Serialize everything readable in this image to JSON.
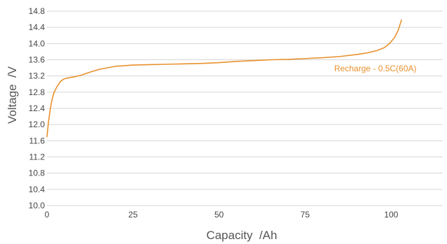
{
  "chart_data": {
    "type": "line",
    "title": "",
    "xlabel": "Capacity  /Ah",
    "ylabel": "Voltage  /V",
    "xlim": [
      0,
      115
    ],
    "ylim": [
      10.0,
      14.8
    ],
    "x_ticks": [
      0,
      25,
      50,
      75,
      100
    ],
    "x_tick_labels": [
      "0",
      "25",
      "50",
      "75",
      "100"
    ],
    "y_ticks": [
      10.0,
      10.4,
      10.8,
      11.2,
      11.6,
      12.0,
      12.4,
      12.8,
      13.2,
      13.6,
      14.0,
      14.4,
      14.8
    ],
    "y_tick_labels": [
      "10.0",
      "10.4",
      "10.8",
      "11.2",
      "11.6",
      "12.0",
      "12.4",
      "12.8",
      "13.2",
      "13.6",
      "14.0",
      "14.4",
      "14.8"
    ],
    "grid": "horizontal",
    "series_label": "Recharge - 0.5C(60A)",
    "color": "#e8912e",
    "series": [
      {
        "name": "Recharge - 0.5C(60A)",
        "x": [
          0,
          0.5,
          1,
          1.5,
          2,
          3,
          4,
          5,
          6,
          8,
          10,
          12,
          15,
          20,
          25,
          30,
          35,
          40,
          45,
          50,
          55,
          60,
          65,
          70,
          75,
          80,
          85,
          90,
          93,
          96,
          98,
          99.5,
          101,
          102,
          103
        ],
        "y": [
          11.7,
          12.1,
          12.4,
          12.62,
          12.78,
          12.95,
          13.07,
          13.13,
          13.15,
          13.18,
          13.22,
          13.28,
          13.36,
          13.44,
          13.47,
          13.48,
          13.49,
          13.5,
          13.51,
          13.53,
          13.56,
          13.58,
          13.6,
          13.61,
          13.63,
          13.65,
          13.68,
          13.73,
          13.77,
          13.83,
          13.9,
          14.0,
          14.15,
          14.32,
          14.58
        ]
      }
    ]
  }
}
